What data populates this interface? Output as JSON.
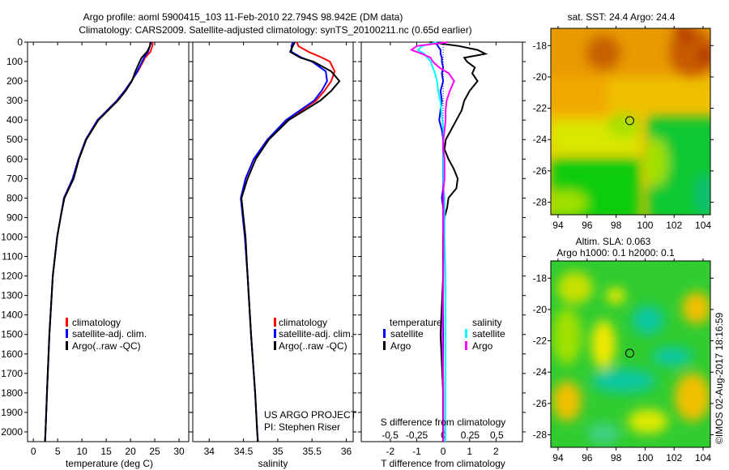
{
  "header": {
    "title_line1": "Argo profile: aoml 5900415_103 11-Feb-2010 22.794S 98.942E (DM data)",
    "title_line2": "Climatology: CARS2009. Satellite-adjusted climatology: synTS_20100211.nc (0.65d earlier)"
  },
  "credits": {
    "project": "US ARGO PROJECT",
    "pi": "PI: Stephen Riser",
    "stamp": "©IMOS 02-Aug-2017 18:16:59"
  },
  "chart_data": [
    {
      "type": "line",
      "id": "temperature",
      "xlabel": "temperature (deg C)",
      "ylabel": "",
      "xlim": [
        -1.2,
        32
      ],
      "ylim": [
        2050,
        0
      ],
      "xticks": [
        0,
        5,
        10,
        15,
        20,
        25,
        30
      ],
      "yticks": [
        0,
        100,
        200,
        300,
        400,
        500,
        600,
        700,
        800,
        900,
        1000,
        1100,
        1200,
        1300,
        1400,
        1500,
        1600,
        1700,
        1800,
        1900,
        2000
      ],
      "legend": [
        "climatology",
        "satellite-adj. clim.",
        "Argo(..raw -QC)"
      ],
      "legend_placement": "lower-center",
      "depth": [
        0,
        20,
        50,
        80,
        100,
        150,
        200,
        250,
        300,
        400,
        500,
        600,
        700,
        800,
        900,
        1000,
        1200,
        1500,
        1800,
        2000,
        2050
      ],
      "series": [
        {
          "name": "climatology",
          "color": "#ff0000",
          "values": [
            24.6,
            24.5,
            24.1,
            23.0,
            22.6,
            21.5,
            20.2,
            18.8,
            17.2,
            13.2,
            10.8,
            9.3,
            8.1,
            6.3,
            5.6,
            4.9,
            4.0,
            3.3,
            2.8,
            2.5,
            2.4
          ]
        },
        {
          "name": "satellite-adj. clim.",
          "color": "#0000ff",
          "values": [
            24.3,
            24.0,
            23.6,
            22.8,
            22.4,
            21.4,
            20.2,
            18.8,
            17.2,
            13.2,
            10.8,
            9.3,
            8.1,
            6.3,
            5.6,
            4.9,
            4.0,
            3.3,
            2.8,
            2.5,
            2.4
          ]
        },
        {
          "name": "Argo(..raw -QC)",
          "color": "#000000",
          "values": [
            24.1,
            24.0,
            23.4,
            22.3,
            21.9,
            21.0,
            20.3,
            19.0,
            17.4,
            13.4,
            10.9,
            9.4,
            8.3,
            6.4,
            5.6,
            4.9,
            4.0,
            3.3,
            2.8,
            2.5,
            2.4
          ]
        }
      ]
    },
    {
      "type": "line",
      "id": "salinity",
      "xlabel": "salinity",
      "xlim": [
        33.76,
        36.1
      ],
      "ylim": [
        2050,
        0
      ],
      "xticks": [
        34,
        34.5,
        35,
        35.5,
        36
      ],
      "legend": [
        "climatology",
        "satellite-adj. clim.",
        "Argo(..raw -QC)"
      ],
      "legend_placement": "lower-right",
      "depth": [
        0,
        20,
        50,
        80,
        100,
        150,
        200,
        250,
        300,
        400,
        500,
        600,
        700,
        800,
        900,
        1000,
        1200,
        1500,
        1800,
        2000,
        2050
      ],
      "series": [
        {
          "name": "climatology",
          "color": "#ff0000",
          "values": [
            35.28,
            35.3,
            35.45,
            35.65,
            35.76,
            35.83,
            35.78,
            35.68,
            35.56,
            35.13,
            34.85,
            34.65,
            34.53,
            34.47,
            34.49,
            34.52,
            34.56,
            34.61,
            34.67,
            34.7,
            34.71
          ]
        },
        {
          "name": "satellite-adj. clim.",
          "color": "#0000ff",
          "values": [
            35.22,
            35.2,
            35.2,
            35.35,
            35.5,
            35.7,
            35.72,
            35.64,
            35.53,
            35.12,
            34.85,
            34.65,
            34.53,
            34.46,
            34.49,
            34.52,
            34.56,
            34.61,
            34.67,
            34.7,
            34.71
          ]
        },
        {
          "name": "Argo(..raw -QC)",
          "color": "#000000",
          "values": [
            35.25,
            35.22,
            35.18,
            35.33,
            35.52,
            35.78,
            35.9,
            35.78,
            35.62,
            35.16,
            34.87,
            34.68,
            34.56,
            34.47,
            34.5,
            34.53,
            34.56,
            34.61,
            34.67,
            34.7,
            34.71
          ]
        }
      ]
    },
    {
      "type": "line",
      "id": "difference",
      "xlabel": "T difference from climatology",
      "xlabel2": "S difference from climatology",
      "xlim": [
        -3.1,
        3.0
      ],
      "xlim_s": [
        -0.77,
        0.74
      ],
      "ylim": [
        2050,
        0
      ],
      "xticks": [
        -2,
        -1,
        0,
        1,
        2
      ],
      "xticks_s": [
        -0.5,
        -0.25,
        0,
        0.25,
        0.5
      ],
      "xticklabels_s": [
        "-0.5",
        "-0.25",
        "0",
        "0.25",
        "0.5"
      ],
      "legend_temperature_title": "temperature",
      "legend_salinity_title": "salinity",
      "legend_entries": [
        "satellite",
        "Argo",
        "satellite",
        "Argo"
      ],
      "depth": [
        0,
        20,
        40,
        60,
        80,
        100,
        130,
        160,
        200,
        250,
        300,
        350,
        400,
        450,
        500,
        550,
        600,
        650,
        700,
        750,
        800,
        850,
        900,
        1000,
        1200,
        1500,
        1800,
        2000,
        2050
      ],
      "series": [
        {
          "name": "T satellite",
          "axis": "T",
          "color": "#0000ff",
          "values": [
            -0.3,
            -0.2,
            -0.1,
            -0.1,
            -0.05,
            -0.05,
            0,
            -0.05,
            0,
            -0.1,
            -0.05,
            -0.1,
            -0.15,
            -0.05,
            0,
            0,
            0,
            0,
            0,
            0,
            -0.05,
            0,
            0,
            0,
            0,
            0,
            0,
            0,
            0
          ]
        },
        {
          "name": "T Argo",
          "axis": "T",
          "color": "#000000",
          "values": [
            -0.5,
            0.6,
            1.3,
            1.6,
            0.8,
            0.9,
            1.2,
            1.1,
            1.3,
            1.0,
            0.8,
            0.7,
            0.5,
            0.3,
            0.1,
            0.05,
            0.2,
            0.4,
            0.55,
            0.5,
            0.2,
            0.15,
            0.05,
            0,
            0,
            -0.1,
            0,
            0,
            0
          ]
        },
        {
          "name": "S satellite",
          "axis": "S",
          "color": "#00ffff",
          "values": [
            -0.06,
            -0.2,
            -0.24,
            -0.18,
            -0.15,
            -0.12,
            -0.1,
            -0.08,
            -0.06,
            -0.05,
            -0.03,
            -0.02,
            -0.01,
            0,
            0,
            0,
            0,
            0,
            0,
            0,
            0.01,
            0.01,
            0.01,
            0.01,
            0.02,
            0.02,
            0.02,
            0.02,
            0.02
          ]
        },
        {
          "name": "S Argo",
          "axis": "S",
          "color": "#ff00ff",
          "values": [
            0.04,
            -0.25,
            -0.3,
            -0.2,
            -0.12,
            -0.1,
            -0.04,
            0.05,
            0.1,
            0.06,
            0.03,
            0.02,
            0.02,
            0.01,
            0.0,
            0.0,
            0.01,
            0.01,
            0.01,
            0.0,
            0.0,
            0.0,
            0.0,
            0.0,
            0.0,
            -0.01,
            0,
            0,
            0
          ]
        }
      ]
    },
    {
      "type": "heatmap",
      "id": "sst-map",
      "title": "sat. SST: 24.4 Argo: 24.4",
      "xlim": [
        93.5,
        104.5
      ],
      "ylim": [
        -28.8,
        -16.9
      ],
      "xticks": [
        94,
        96,
        98,
        100,
        102,
        104
      ],
      "yticks": [
        -18,
        -20,
        -22,
        -24,
        -26,
        -28
      ],
      "float_position": {
        "lon": 98.942,
        "lat": -22.794
      }
    },
    {
      "type": "heatmap",
      "id": "sla-map",
      "title": "Altim. SLA: 0.063",
      "subtitle": "Argo h1000: 0.1 h2000: 0.1",
      "xlim": [
        93.5,
        104.5
      ],
      "ylim": [
        -28.8,
        -16.9
      ],
      "xticks": [
        94,
        96,
        98,
        100,
        102,
        104
      ],
      "yticks": [
        -18,
        -20,
        -22,
        -24,
        -26,
        -28
      ],
      "float_position": {
        "lon": 98.942,
        "lat": -22.794
      }
    }
  ]
}
